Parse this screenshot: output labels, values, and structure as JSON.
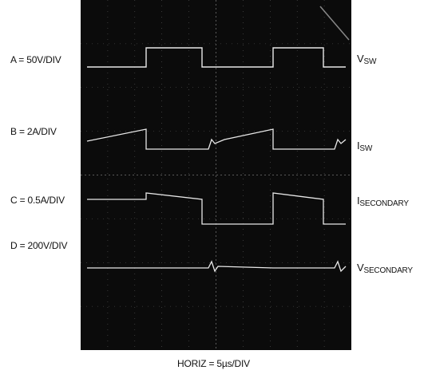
{
  "channel_scales": {
    "a": "A = 50V/DIV",
    "b": "B = 2A/DIV",
    "c": "C = 0.5A/DIV",
    "d": "D = 200V/DIV"
  },
  "signals": {
    "vsw": {
      "main": "V",
      "sub": "SW"
    },
    "isw": {
      "main": "I",
      "sub": "SW"
    },
    "isecondary": {
      "main": "I",
      "sub": "SECONDARY"
    },
    "vsecondary": {
      "main": "V",
      "sub": "SECONDARY"
    }
  },
  "horizontal_scale": "HORIZ = 5µs/DIV",
  "colors": {
    "screen": "#0b0b0b",
    "trace": "#e8e8e8",
    "graticule": "#5a5a5a"
  }
}
